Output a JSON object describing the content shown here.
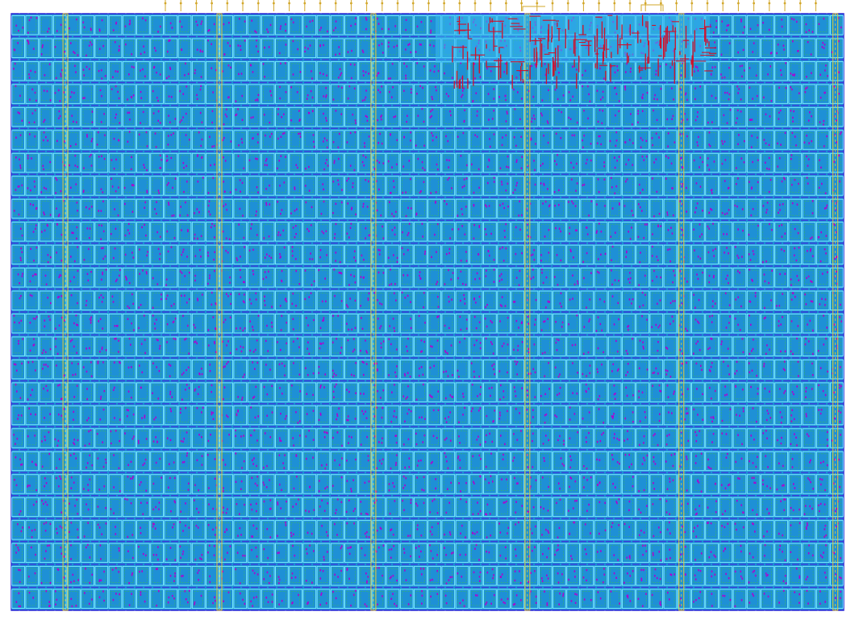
{
  "view": {
    "background": "#ffffff",
    "core_fill": "#1e90d6",
    "cell_rows": 26,
    "cell_columns": 60,
    "has_pin_ruler": true,
    "has_power_straps": true,
    "has_congestion_cluster": true
  },
  "layers": [
    {
      "name": "metal-rail",
      "color": "#3b3bd9"
    },
    {
      "name": "cell-outline",
      "color": "#7ff0ff"
    },
    {
      "name": "cell-pin",
      "color": "#b000d0"
    },
    {
      "name": "instance-text",
      "color": "#3bbd5a"
    },
    {
      "name": "power-strap",
      "color": "#e3c93a"
    },
    {
      "name": "congestion-route",
      "color": "#d0102a"
    },
    {
      "name": "io-pin",
      "color": "#d2a72a"
    }
  ]
}
